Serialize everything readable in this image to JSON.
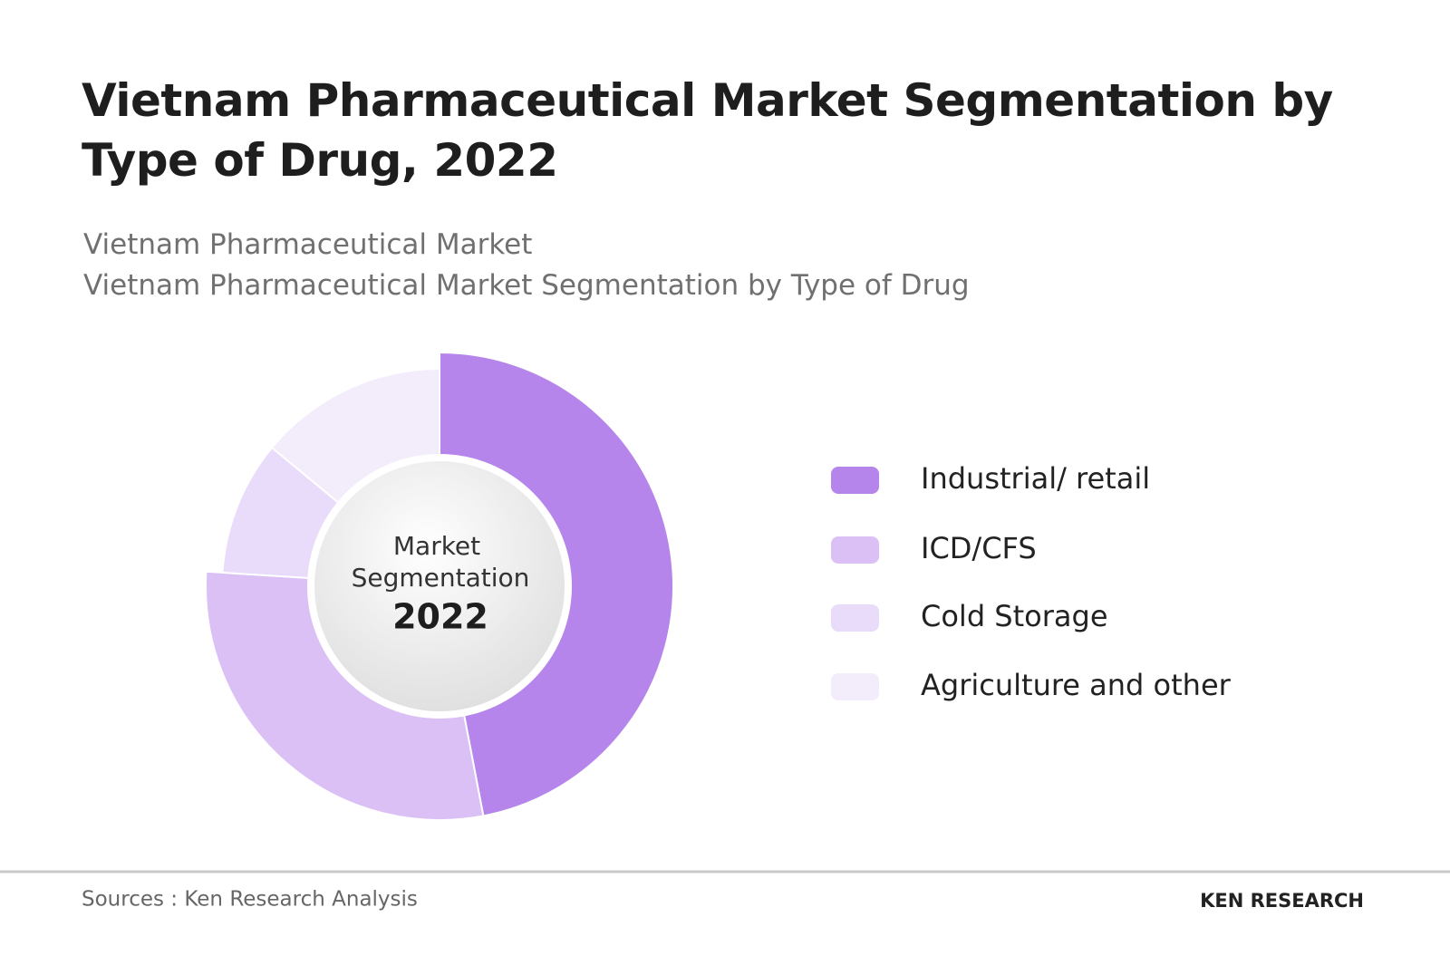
{
  "chart_data": {
    "type": "pie",
    "title": "Vietnam Pharmaceutical Market Segmentation by Type of Drug, 2022",
    "subtitle": [
      "Vietnam Pharmaceutical Market",
      "Vietnam Pharmaceutical Market Segmentation by Type of Drug"
    ],
    "center_label": [
      "Market",
      "Segmentation",
      "2022"
    ],
    "categories": [
      "Industrial/ retail",
      "ICD/CFS",
      "Cold Storage",
      "Agriculture and other"
    ],
    "values": [
      47,
      29,
      10,
      14
    ],
    "colors": [
      "#b685ec",
      "#dbc0f6",
      "#e9dbfa",
      "#f3ecfb"
    ]
  },
  "source": "Sources : Ken Research Analysis",
  "brand": "KEN RESEARCH"
}
